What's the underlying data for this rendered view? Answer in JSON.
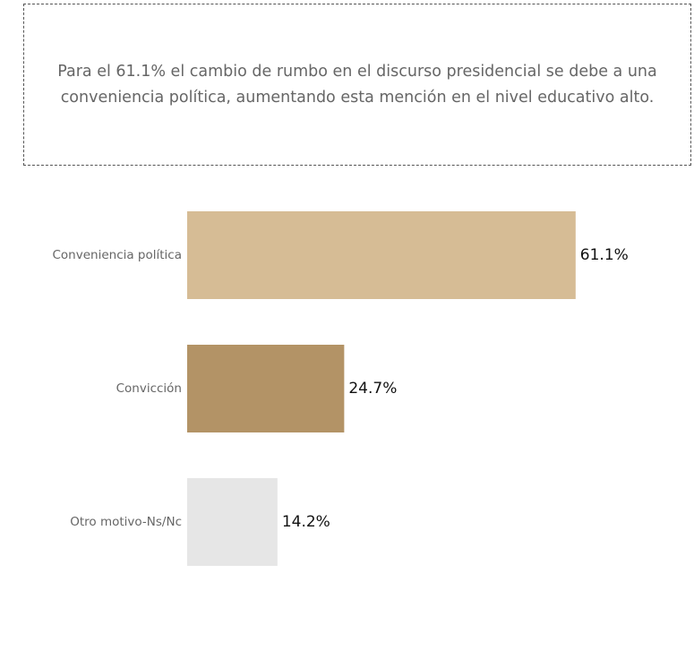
{
  "note": {
    "text": "Para el 61.1% el cambio de rumbo en el discurso presidencial se debe a una conveniencia política, aumentando esta mención en el nivel educativo alto."
  },
  "chart_data": {
    "type": "bar",
    "orientation": "horizontal",
    "title": "",
    "xlabel": "",
    "ylabel": "",
    "categories": [
      "Conveniencia política",
      "Convicción",
      "Otro motivo-Ns/Nc"
    ],
    "values": [
      61.1,
      24.7,
      14.2
    ],
    "value_labels": [
      "61.1%",
      "24.7%",
      "14.2%"
    ],
    "colors": [
      "#d6bc95",
      "#b39366",
      "#e6e6e6"
    ],
    "xlim": [
      0,
      100
    ],
    "grid": false,
    "legend": "none"
  }
}
